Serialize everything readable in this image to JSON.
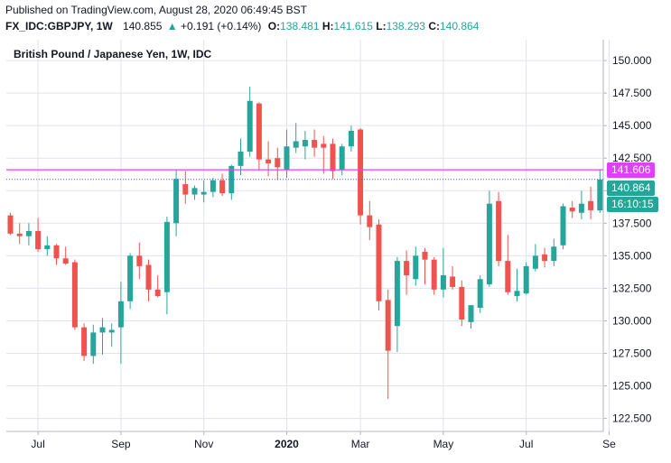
{
  "header": {
    "published": "Published on TradingView.com, August 28, 2020 06:49:45 BST",
    "symbol": "FX_IDC:GBPJPY, 1W",
    "last": "140.855",
    "change": "+0.191 (+0.14%)",
    "o_label": "O:",
    "o": "138.481",
    "h_label": "H:",
    "h": "141.615",
    "l_label": "L:",
    "l": "138.293",
    "c_label": "C:",
    "c": "140.864"
  },
  "colors": {
    "up": "#26a69a",
    "down": "#ef5350",
    "marker": "#e040fb",
    "grid": "#e0e3eb",
    "dotted": "#2962ff"
  },
  "badges": {
    "marker_price": "141.606",
    "last_price": "140.864",
    "countdown": "16:10:15"
  },
  "chart_data": {
    "type": "candlestick",
    "title": "British Pound / Japanese Yen, 1W, IDC",
    "x_ticks": [
      "Jul",
      "Sep",
      "Nov",
      "2020",
      "Mar",
      "May",
      "Jul",
      "Se"
    ],
    "y_ticks": [
      "150.000",
      "147.500",
      "145.000",
      "142.500",
      "140.000",
      "137.500",
      "135.000",
      "132.500",
      "130.000",
      "127.500",
      "125.000",
      "122.500"
    ],
    "ylim": [
      121.5,
      151.6
    ],
    "horizontal_line": 141.606,
    "last_price_line": 140.864,
    "candles": [
      {
        "o": 138.1,
        "h": 138.3,
        "l": 136.6,
        "c": 136.7
      },
      {
        "o": 136.7,
        "h": 137.5,
        "l": 135.9,
        "c": 136.5
      },
      {
        "o": 136.5,
        "h": 137.5,
        "l": 135.8,
        "c": 136.9
      },
      {
        "o": 136.9,
        "h": 137.9,
        "l": 135.3,
        "c": 135.5
      },
      {
        "o": 135.5,
        "h": 136.5,
        "l": 135.0,
        "c": 135.8
      },
      {
        "o": 135.8,
        "h": 135.9,
        "l": 134.3,
        "c": 134.8
      },
      {
        "o": 134.8,
        "h": 135.7,
        "l": 134.3,
        "c": 134.4
      },
      {
        "o": 134.5,
        "h": 134.7,
        "l": 129.3,
        "c": 129.5
      },
      {
        "o": 129.5,
        "h": 129.8,
        "l": 126.9,
        "c": 127.3
      },
      {
        "o": 127.3,
        "h": 129.7,
        "l": 126.7,
        "c": 129.1
      },
      {
        "o": 129.1,
        "h": 130.2,
        "l": 127.4,
        "c": 129.5
      },
      {
        "o": 129.1,
        "h": 129.8,
        "l": 128.0,
        "c": 129.3
      },
      {
        "o": 129.5,
        "h": 133.0,
        "l": 126.7,
        "c": 131.5
      },
      {
        "o": 131.5,
        "h": 135.2,
        "l": 130.9,
        "c": 135.0
      },
      {
        "o": 135.0,
        "h": 136.0,
        "l": 133.2,
        "c": 134.2
      },
      {
        "o": 134.3,
        "h": 134.7,
        "l": 131.5,
        "c": 132.4
      },
      {
        "o": 132.4,
        "h": 133.5,
        "l": 131.8,
        "c": 131.9
      },
      {
        "o": 132.2,
        "h": 138.0,
        "l": 130.5,
        "c": 137.6
      },
      {
        "o": 137.5,
        "h": 141.6,
        "l": 136.5,
        "c": 140.9
      },
      {
        "o": 140.5,
        "h": 141.5,
        "l": 139.0,
        "c": 139.7
      },
      {
        "o": 139.7,
        "h": 140.4,
        "l": 139.3,
        "c": 140.2
      },
      {
        "o": 139.7,
        "h": 140.8,
        "l": 139.1,
        "c": 139.9
      },
      {
        "o": 139.9,
        "h": 141.0,
        "l": 139.5,
        "c": 140.8
      },
      {
        "o": 140.8,
        "h": 141.3,
        "l": 139.6,
        "c": 139.8
      },
      {
        "o": 139.8,
        "h": 142.0,
        "l": 139.3,
        "c": 141.9
      },
      {
        "o": 141.9,
        "h": 144.0,
        "l": 141.2,
        "c": 143.0
      },
      {
        "o": 143.0,
        "h": 148.0,
        "l": 142.6,
        "c": 146.9
      },
      {
        "o": 146.7,
        "h": 146.8,
        "l": 141.6,
        "c": 142.4
      },
      {
        "o": 142.4,
        "h": 143.8,
        "l": 141.1,
        "c": 142.1
      },
      {
        "o": 142.5,
        "h": 143.3,
        "l": 140.8,
        "c": 141.8
      },
      {
        "o": 141.6,
        "h": 144.7,
        "l": 141.0,
        "c": 143.4
      },
      {
        "o": 143.3,
        "h": 145.2,
        "l": 142.9,
        "c": 143.8
      },
      {
        "o": 143.4,
        "h": 144.6,
        "l": 142.4,
        "c": 143.9
      },
      {
        "o": 143.9,
        "h": 144.7,
        "l": 142.6,
        "c": 143.3
      },
      {
        "o": 143.6,
        "h": 144.2,
        "l": 141.3,
        "c": 143.3
      },
      {
        "o": 143.6,
        "h": 144.0,
        "l": 140.9,
        "c": 141.5
      },
      {
        "o": 141.6,
        "h": 143.6,
        "l": 141.2,
        "c": 143.4
      },
      {
        "o": 143.4,
        "h": 145.0,
        "l": 143.0,
        "c": 144.6
      },
      {
        "o": 144.7,
        "h": 144.8,
        "l": 137.4,
        "c": 138.1
      },
      {
        "o": 138.1,
        "h": 139.2,
        "l": 136.2,
        "c": 137.2
      },
      {
        "o": 137.4,
        "h": 137.8,
        "l": 130.8,
        "c": 131.5
      },
      {
        "o": 131.6,
        "h": 132.4,
        "l": 124.0,
        "c": 127.7
      },
      {
        "o": 129.6,
        "h": 134.9,
        "l": 127.6,
        "c": 134.6
      },
      {
        "o": 134.6,
        "h": 135.4,
        "l": 132.0,
        "c": 133.5
      },
      {
        "o": 133.2,
        "h": 135.7,
        "l": 132.7,
        "c": 135.0
      },
      {
        "o": 135.3,
        "h": 135.6,
        "l": 132.8,
        "c": 134.7
      },
      {
        "o": 134.7,
        "h": 134.9,
        "l": 132.0,
        "c": 132.4
      },
      {
        "o": 132.4,
        "h": 135.6,
        "l": 131.8,
        "c": 133.5
      },
      {
        "o": 133.4,
        "h": 134.2,
        "l": 132.4,
        "c": 132.6
      },
      {
        "o": 132.6,
        "h": 133.1,
        "l": 129.6,
        "c": 130.1
      },
      {
        "o": 129.9,
        "h": 131.1,
        "l": 129.4,
        "c": 131.2
      },
      {
        "o": 131.0,
        "h": 133.5,
        "l": 130.6,
        "c": 133.2
      },
      {
        "o": 132.8,
        "h": 140.0,
        "l": 132.6,
        "c": 139.0
      },
      {
        "o": 139.2,
        "h": 139.9,
        "l": 134.2,
        "c": 134.6
      },
      {
        "o": 134.6,
        "h": 136.6,
        "l": 132.0,
        "c": 132.2
      },
      {
        "o": 131.9,
        "h": 134.0,
        "l": 131.5,
        "c": 132.3
      },
      {
        "o": 132.1,
        "h": 134.5,
        "l": 132.0,
        "c": 134.2
      },
      {
        "o": 134.0,
        "h": 135.9,
        "l": 133.8,
        "c": 135.0
      },
      {
        "o": 135.1,
        "h": 135.6,
        "l": 134.1,
        "c": 134.6
      },
      {
        "o": 134.6,
        "h": 136.3,
        "l": 134.2,
        "c": 135.7
      },
      {
        "o": 135.8,
        "h": 139.0,
        "l": 135.5,
        "c": 138.8
      },
      {
        "o": 138.7,
        "h": 139.2,
        "l": 137.9,
        "c": 138.4
      },
      {
        "o": 138.3,
        "h": 140.0,
        "l": 137.8,
        "c": 139.0
      },
      {
        "o": 139.2,
        "h": 140.3,
        "l": 137.8,
        "c": 138.5
      },
      {
        "o": 138.48,
        "h": 141.62,
        "l": 138.29,
        "c": 140.86
      }
    ]
  }
}
